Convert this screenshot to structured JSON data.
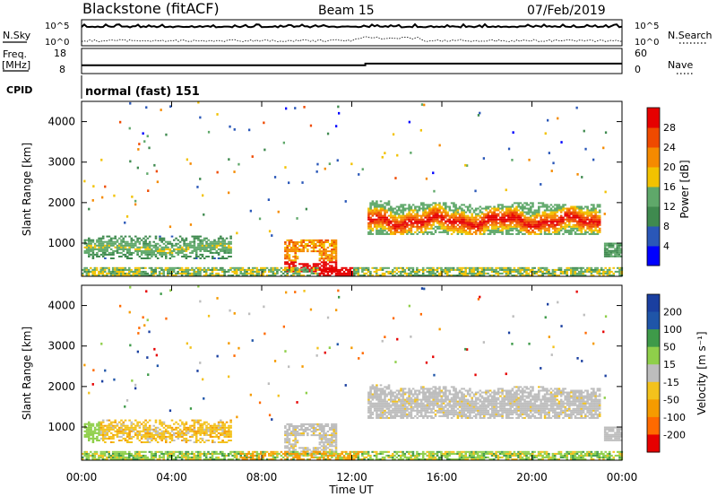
{
  "header": {
    "radar": "Blackstone (fitACF)",
    "beam": "Beam 15",
    "date": "07/Feb/2019"
  },
  "side_labels": {
    "nsky": "N.Sky",
    "freq": "Freq.",
    "freq_unit": "[MHz]",
    "cpid": "CPID",
    "nsearch": "N.Search",
    "nave": "Nave"
  },
  "cpid_text": "normal (fast) 151",
  "time_axis": {
    "label": "Time UT",
    "ticks": [
      "00:00",
      "04:00",
      "08:00",
      "12:00",
      "16:00",
      "20:00",
      "00:00"
    ]
  },
  "colors": {
    "power": [
      "#0000ff",
      "#2a57b8",
      "#3f8a4f",
      "#5fa86a",
      "#f2c200",
      "#f58a00",
      "#ef4a00",
      "#e60000"
    ],
    "velocity": [
      "#e60000",
      "#ff6a00",
      "#f59b00",
      "#f3c21c",
      "#bdbdbd",
      "#8fcf4a",
      "#3e9a49",
      "#1f55a8",
      "#1a3fa0"
    ]
  },
  "chart_data": [
    {
      "type": "line",
      "name": "noise",
      "yticks_left": [
        "10^5",
        "10^0"
      ],
      "yticks_right": [
        "10^5",
        "10^0"
      ],
      "left_label": "N.Sky",
      "right_label": "N.Search"
    },
    {
      "type": "line",
      "name": "frequency",
      "left_label": "Freq. [MHz]",
      "right_label": "Nave",
      "ylim_left": [
        8,
        18
      ],
      "ylim_right": [
        0,
        60
      ],
      "yticks_left": [
        "18",
        "8"
      ],
      "yticks_right": [
        "60",
        "0"
      ],
      "x_hours": [
        0,
        12.6,
        12.6,
        24
      ],
      "freq_mhz": [
        11.0,
        11.0,
        11.8,
        11.8
      ]
    },
    {
      "type": "heatmap",
      "name": "power",
      "ylabel": "Slant Range [km]",
      "xlabel": "Time UT",
      "xlim_hours": [
        0,
        24
      ],
      "ylim_km": [
        180,
        4500
      ],
      "yticks": [
        1000,
        2000,
        3000,
        4000
      ],
      "colorbar_label": "Power [dB]",
      "colorbar_ticks": [
        4,
        8,
        12,
        16,
        20,
        24,
        28
      ],
      "colorbar_range": [
        0,
        32
      ],
      "regions": [
        {
          "t0": 0.1,
          "t1": 6.6,
          "r0": 600,
          "r1": 1150,
          "level": 2.2
        },
        {
          "t0": 9.0,
          "t1": 11.3,
          "r0": 280,
          "r1": 1050,
          "level": 5.0
        },
        {
          "t0": 12.7,
          "t1": 23.0,
          "r0": 1200,
          "r1": 2050,
          "level": 4.6
        },
        {
          "t0": 0.0,
          "t1": 24.0,
          "r0": 180,
          "r1": 380,
          "level": 3.2
        },
        {
          "t0": 23.2,
          "t1": 24.0,
          "r0": 650,
          "r1": 1000,
          "level": 2.6
        }
      ]
    },
    {
      "type": "heatmap",
      "name": "velocity",
      "ylabel": "Slant Range [km]",
      "xlabel": "Time UT",
      "xlim_hours": [
        0,
        24
      ],
      "ylim_km": [
        180,
        4500
      ],
      "yticks": [
        1000,
        2000,
        3000,
        4000
      ],
      "colorbar_label": "Velocity [m s⁻¹]",
      "colorbar_ticks": [
        "200",
        "100",
        "50",
        "15",
        "-15",
        "-50",
        "-100",
        "-200"
      ],
      "regions": [
        {
          "t0": 0.1,
          "t1": 6.6,
          "r0": 600,
          "r1": 1150,
          "level": "orange"
        },
        {
          "t0": 9.0,
          "t1": 11.3,
          "r0": 280,
          "r1": 1050,
          "level": "grey"
        },
        {
          "t0": 12.7,
          "t1": 23.0,
          "r0": 1200,
          "r1": 2050,
          "level": "grey"
        },
        {
          "t0": 0.0,
          "t1": 24.0,
          "r0": 180,
          "r1": 380,
          "level": "mixed"
        }
      ]
    }
  ]
}
